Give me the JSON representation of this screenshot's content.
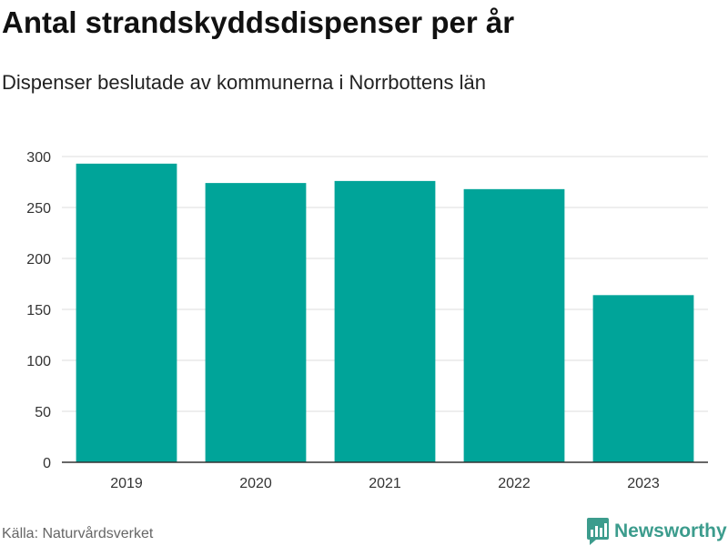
{
  "title": "Antal strandskyddsdispenser per år",
  "subtitle": "Dispenser beslutade av kommunerna i Norrbottens län",
  "source": "Källa: Naturvårdsverket",
  "brand": "Newsworthy",
  "colors": {
    "bar": "#00a499",
    "grid": "#dddddd",
    "axis": "#333333",
    "brand": "#3c9c8d"
  },
  "chart_data": {
    "type": "bar",
    "title": "Antal strandskyddsdispenser per år",
    "subtitle": "Dispenser beslutade av kommunerna i Norrbottens län",
    "categories": [
      "2019",
      "2020",
      "2021",
      "2022",
      "2023"
    ],
    "values": [
      293,
      274,
      276,
      268,
      164
    ],
    "xlabel": "",
    "ylabel": "",
    "ylim": [
      0,
      300
    ],
    "yticks": [
      0,
      50,
      100,
      150,
      200,
      250,
      300
    ],
    "grid": true,
    "legend": "none"
  }
}
